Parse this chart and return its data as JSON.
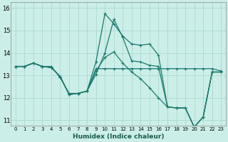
{
  "title": "",
  "xlabel": "Humidex (Indice chaleur)",
  "bg_color": "#cceee8",
  "grid_color": "#aad8d0",
  "line_color": "#1a7a6e",
  "xlim": [
    -0.5,
    23.5
  ],
  "ylim": [
    10.75,
    16.25
  ],
  "xticks": [
    0,
    1,
    2,
    3,
    4,
    5,
    6,
    7,
    8,
    9,
    10,
    11,
    12,
    13,
    14,
    15,
    16,
    17,
    18,
    19,
    20,
    21,
    22,
    23
  ],
  "yticks": [
    11,
    12,
    13,
    14,
    15,
    16
  ],
  "line1_y": [
    13.4,
    13.4,
    13.55,
    13.4,
    13.4,
    12.9,
    12.2,
    12.2,
    12.3,
    13.3,
    13.3,
    13.3,
    13.3,
    13.3,
    13.3,
    13.3,
    13.3,
    13.3,
    13.3,
    13.3,
    13.3,
    13.3,
    13.3,
    13.2
  ],
  "line2_y": [
    13.4,
    13.4,
    13.55,
    13.4,
    13.35,
    12.95,
    12.15,
    12.2,
    12.3,
    13.6,
    15.75,
    15.3,
    14.75,
    14.4,
    14.35,
    14.4,
    13.9,
    11.6,
    11.55,
    11.55,
    10.7,
    11.15,
    13.15,
    13.15
  ],
  "line3_y": [
    13.4,
    13.4,
    13.55,
    13.4,
    13.35,
    12.95,
    12.15,
    12.2,
    12.3,
    13.05,
    14.0,
    15.5,
    14.7,
    13.65,
    13.6,
    13.45,
    13.4,
    11.6,
    11.55,
    11.55,
    10.7,
    11.15,
    13.15,
    13.15
  ],
  "line4_y": [
    13.4,
    13.4,
    13.55,
    13.4,
    13.35,
    12.95,
    12.15,
    12.2,
    12.3,
    13.2,
    13.8,
    14.05,
    13.55,
    13.15,
    12.85,
    12.45,
    12.0,
    11.6,
    11.55,
    11.55,
    10.7,
    11.15,
    13.15,
    13.15
  ]
}
